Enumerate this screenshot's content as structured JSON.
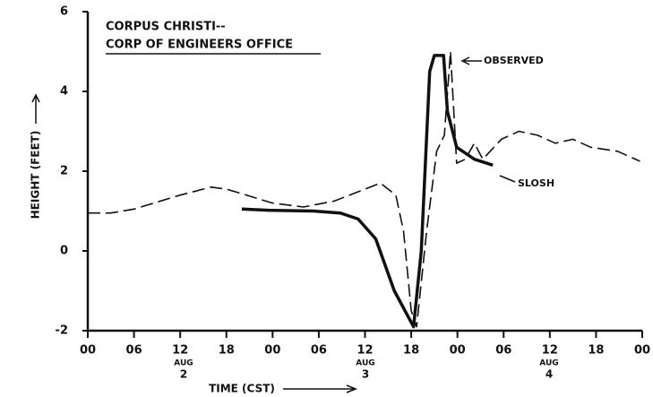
{
  "chart_data": {
    "type": "line",
    "title_lines": [
      "CORPUS CHRISTI--",
      "CORP OF ENGINEERS OFFICE"
    ],
    "y_label": "HEIGHT (FEET)",
    "x_label": "TIME (CST)",
    "day_labels": [
      {
        "month": "AUG",
        "day": "2"
      },
      {
        "month": "AUG",
        "day": "3"
      },
      {
        "month": "AUG",
        "day": "4"
      }
    ],
    "xlim": [
      0,
      72
    ],
    "xticks": [
      {
        "value": 0,
        "label": "00"
      },
      {
        "value": 6,
        "label": "06"
      },
      {
        "value": 12,
        "label": "12"
      },
      {
        "value": 18,
        "label": "18"
      },
      {
        "value": 24,
        "label": "00"
      },
      {
        "value": 30,
        "label": "06"
      },
      {
        "value": 36,
        "label": "12"
      },
      {
        "value": 42,
        "label": "18"
      },
      {
        "value": 48,
        "label": "00"
      },
      {
        "value": 54,
        "label": "06"
      },
      {
        "value": 60,
        "label": "12"
      },
      {
        "value": 66,
        "label": "18"
      },
      {
        "value": 72,
        "label": "00"
      }
    ],
    "ylim": [
      -2,
      6
    ],
    "yticks": [
      -2,
      0,
      2,
      4,
      6
    ],
    "series": [
      {
        "name": "OBSERVED",
        "color": "#111111",
        "dashed": true,
        "x": [
          0,
          3,
          6,
          12,
          16,
          18,
          24,
          28,
          32,
          36,
          38,
          40,
          41,
          42,
          42.7,
          44,
          45.3,
          46.3,
          47.1,
          47.9,
          49,
          50.2,
          51.3,
          53.7,
          56,
          58.4,
          60.7,
          63,
          65.3,
          68.8,
          71.7
        ],
        "values": [
          0.95,
          0.95,
          1.05,
          1.4,
          1.6,
          1.55,
          1.2,
          1.1,
          1.25,
          1.55,
          1.7,
          1.4,
          0.5,
          -1.5,
          -1.9,
          0.5,
          2.5,
          2.9,
          5.0,
          2.2,
          2.3,
          2.7,
          2.3,
          2.8,
          3.0,
          2.9,
          2.7,
          2.8,
          2.6,
          2.5,
          2.25
        ]
      },
      {
        "name": "SLOSH",
        "color": "#111111",
        "dashed": false,
        "x": [
          20,
          23.5,
          29.3,
          32.8,
          35.1,
          37.4,
          39.8,
          42.3,
          43.3,
          44.4,
          45,
          46.2,
          46.7,
          47.9,
          50.2,
          52.6
        ],
        "values": [
          1.05,
          1.02,
          1.0,
          0.95,
          0.8,
          0.3,
          -1.0,
          -1.9,
          0.0,
          4.5,
          4.9,
          4.9,
          3.5,
          2.6,
          2.3,
          2.15
        ]
      }
    ]
  }
}
